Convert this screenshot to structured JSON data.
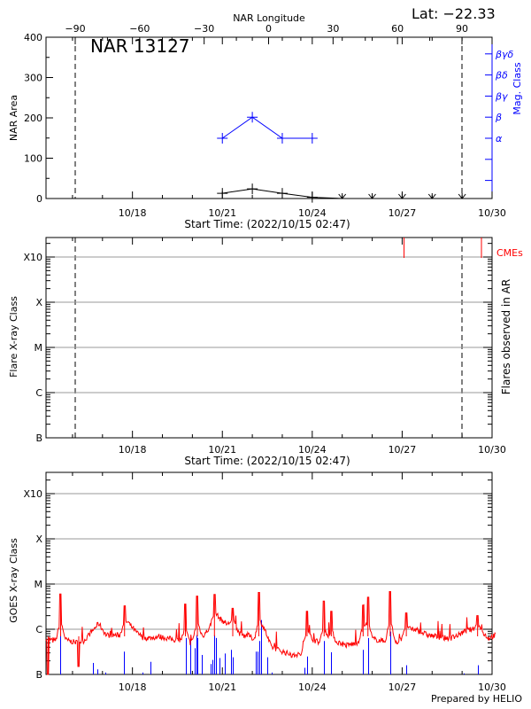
{
  "header": {
    "lat_label": "Lat: −22.33",
    "top_axis_title": "NAR Longitude",
    "region_title": "NAR 13127",
    "footer": "Prepared by HELIO"
  },
  "colors": {
    "axis": "#000000",
    "mag_class": "#0000ff",
    "goes": "#ff0000",
    "flares": "#0000ff",
    "cme": "#ff0000",
    "grid": "#999999"
  },
  "chart_data": [
    {
      "type": "line",
      "panel": "nar-area",
      "ylabel": "NAR Area",
      "y2label": "Mag. Class",
      "xlabel": "Start Time: (2022/10/15 02:47)",
      "start_time": "2022/10/15 02:47",
      "ylim": [
        0,
        400
      ],
      "yticks": [
        "0",
        "100",
        "200",
        "300",
        "400"
      ],
      "xticks": [
        "10/18",
        "10/21",
        "10/24",
        "10/27",
        "10/30"
      ],
      "top_xticks": [
        "-90",
        "-60",
        "-30",
        "0",
        "30",
        "60",
        "90"
      ],
      "top_xlim": [
        -90,
        90
      ],
      "limb_longitudes": [
        -90,
        90
      ],
      "mag_class_ticks": [
        "α",
        "β",
        "βγ",
        "βδ",
        "βγδ"
      ],
      "area_series": [
        {
          "t": "10/21 00:00",
          "area": 13
        },
        {
          "t": "10/22 00:00",
          "area": 24
        },
        {
          "t": "10/23 00:00",
          "area": 13
        },
        {
          "t": "10/24 00:00",
          "area": 3
        },
        {
          "t": "10/25 00:00",
          "area": 0,
          "behind_limb": true
        },
        {
          "t": "10/26 00:00",
          "area": 0,
          "behind_limb": true
        },
        {
          "t": "10/27 00:00",
          "area": 0,
          "behind_limb": true
        },
        {
          "t": "10/28 00:00",
          "area": 0,
          "behind_limb": true
        },
        {
          "t": "10/29 00:00",
          "area": 0,
          "behind_limb": true
        }
      ],
      "mag_class_series": [
        {
          "t": "10/21 00:00",
          "class": "α"
        },
        {
          "t": "10/22 00:00",
          "class": "β"
        },
        {
          "t": "10/23 00:00",
          "class": "α"
        },
        {
          "t": "10/24 00:00",
          "class": "α"
        }
      ]
    },
    {
      "type": "bar",
      "panel": "ar-flares",
      "ylabel": "Flare X-ray Class",
      "y2label": "Flares observed in AR",
      "xlabel": "Start Time: (2022/10/15 02:47)",
      "yticks": [
        "B",
        "C",
        "M",
        "X",
        "X10"
      ],
      "xticks": [
        "10/18",
        "10/21",
        "10/24",
        "10/27",
        "10/30"
      ],
      "flares": [],
      "cme_label": "CMEs",
      "cmes": [
        "10/27 01:30",
        "10/29 15:30"
      ]
    },
    {
      "type": "line",
      "panel": "goes",
      "ylabel": "GOES X-ray Class",
      "yticks": [
        "B",
        "C",
        "M",
        "X",
        "X10"
      ],
      "xticks": [
        "10/18",
        "10/21",
        "10/24",
        "10/27",
        "10/30"
      ],
      "goes_flux": [
        [
          "10/15 03:00",
          6.4e-07
        ],
        [
          "10/15 09:00",
          5.5e-07
        ],
        [
          "10/15 15:00",
          6.4e-07
        ],
        [
          "10/15 21:00",
          5.5e-07
        ],
        [
          "10/16 03:00",
          5.1e-07
        ],
        [
          "10/16 09:00",
          5.5e-07
        ],
        [
          "10/16 15:00",
          8.6e-07
        ],
        [
          "10/16 21:00",
          1.35e-06
        ],
        [
          "10/17 03:00",
          7.4e-07
        ],
        [
          "10/17 09:00",
          7.4e-07
        ],
        [
          "10/17 15:00",
          7.4e-07
        ],
        [
          "10/17 21:00",
          1.35e-06
        ],
        [
          "10/18 03:00",
          8.6e-07
        ],
        [
          "10/18 09:00",
          6.4e-07
        ],
        [
          "10/18 15:00",
          6.4e-07
        ],
        [
          "10/18 21:00",
          6.9e-07
        ],
        [
          "10/19 03:00",
          6.4e-07
        ],
        [
          "10/19 09:00",
          5.9e-07
        ],
        [
          "10/19 15:00",
          5.5e-07
        ],
        [
          "10/19 21:00",
          4.7e-07
        ],
        [
          "10/20 03:00",
          6.4e-07
        ],
        [
          "10/20 09:00",
          7.4e-07
        ],
        [
          "10/20 15:00",
          1.16e-06
        ],
        [
          "10/20 21:00",
          1.8e-06
        ],
        [
          "10/21 03:00",
          1.35e-06
        ],
        [
          "10/21 09:00",
          1.16e-06
        ],
        [
          "10/21 15:00",
          7.4e-07
        ],
        [
          "10/21 21:00",
          7.4e-07
        ],
        [
          "10/22 03:00",
          5.5e-07
        ],
        [
          "10/22 09:00",
          1.16e-06
        ],
        [
          "10/22 15:00",
          4.1e-07
        ],
        [
          "10/22 21:00",
          3.5e-07
        ],
        [
          "10/23 03:00",
          3e-07
        ],
        [
          "10/23 09:00",
          2.6e-07
        ],
        [
          "10/23 15:00",
          2.8e-07
        ],
        [
          "10/23 21:00",
          6.4e-07
        ],
        [
          "10/24 03:00",
          5.5e-07
        ],
        [
          "10/24 09:00",
          4.7e-07
        ],
        [
          "10/24 15:00",
          5.5e-07
        ],
        [
          "10/24 21:00",
          5.1e-07
        ],
        [
          "10/25 03:00",
          4.4e-07
        ],
        [
          "10/25 09:00",
          4.7e-07
        ],
        [
          "10/25 15:00",
          5.5e-07
        ],
        [
          "10/25 21:00",
          6.4e-07
        ],
        [
          "10/26 03:00",
          5.9e-07
        ],
        [
          "10/26 09:00",
          5.5e-07
        ],
        [
          "10/26 15:00",
          6.4e-07
        ],
        [
          "10/26 21:00",
          5.1e-07
        ],
        [
          "10/27 03:00",
          8.6e-07
        ],
        [
          "10/27 09:00",
          1e-06
        ],
        [
          "10/27 15:00",
          8.6e-07
        ],
        [
          "10/27 21:00",
          7.4e-07
        ],
        [
          "10/28 03:00",
          6.9e-07
        ],
        [
          "10/28 09:00",
          6.4e-07
        ],
        [
          "10/28 15:00",
          6.4e-07
        ],
        [
          "10/28 21:00",
          7.4e-07
        ],
        [
          "10/29 03:00",
          9.3e-07
        ],
        [
          "10/29 09:00",
          1e-06
        ],
        [
          "10/29 15:00",
          9.3e-07
        ],
        [
          "10/29 21:00",
          6.4e-07
        ],
        [
          "10/30 03:00",
          7.4e-07
        ]
      ],
      "goes_peaks": [
        [
          "10/15 04:30",
          1e-07
        ],
        [
          "10/15 14:30",
          6e-06
        ],
        [
          "10/16 05:00",
          1.5e-07
        ],
        [
          "10/17 17:40",
          3.3e-06
        ],
        [
          "10/19 18:25",
          3.6e-06
        ],
        [
          "10/20 04:00",
          5.4e-06
        ],
        [
          "10/20 17:40",
          5.9e-06
        ],
        [
          "10/21 08:20",
          2.9e-06
        ],
        [
          "10/22 05:10",
          6.5e-06
        ],
        [
          "10/23 19:50",
          2.5e-06
        ],
        [
          "10/24 09:30",
          4.2e-06
        ],
        [
          "10/24 15:15",
          2.5e-06
        ],
        [
          "10/25 16:45",
          3.4e-06
        ],
        [
          "10/25 20:35",
          5.1e-06
        ],
        [
          "10/26 14:25",
          6.8e-06
        ],
        [
          "10/27 03:20",
          2.3e-06
        ],
        [
          "10/29 12:25",
          2e-06
        ]
      ],
      "flare_events": [
        [
          "10/15 14:20",
          7.6e-07
        ],
        [
          "10/16 16:22",
          1.8e-07
        ],
        [
          "10/16 19:40",
          1.3e-07
        ],
        [
          "10/17 02:30",
          1.1e-07
        ],
        [
          "10/17 17:20",
          3.2e-07
        ],
        [
          "10/18 08:10",
          1.1e-07
        ],
        [
          "10/18 14:40",
          1.9e-07
        ],
        [
          "10/19 18:25",
          6.4e-07
        ],
        [
          "10/19 22:30",
          6.4e-07
        ],
        [
          "10/20 02:05",
          3.8e-07
        ],
        [
          "10/20 03:30",
          7.4e-07
        ],
        [
          "10/20 04:20",
          6.4e-07
        ],
        [
          "10/20 07:20",
          2.7e-07
        ],
        [
          "10/20 14:25",
          1.7e-07
        ],
        [
          "10/20 15:50",
          2.1e-07
        ],
        [
          "10/20 17:45",
          7.4e-07
        ],
        [
          "10/20 18:35",
          6.4e-07
        ],
        [
          "10/20 21:50",
          2.3e-07
        ],
        [
          "10/21 02:00",
          2.9e-07
        ],
        [
          "10/21 06:55",
          3.5e-07
        ],
        [
          "10/21 08:20",
          2.4e-07
        ],
        [
          "10/22 02:55",
          3.2e-07
        ],
        [
          "10/22 04:00",
          3.2e-07
        ],
        [
          "10/22 05:25",
          5.5e-07
        ],
        [
          "10/22 07:05",
          1.6e-06
        ],
        [
          "10/22 11:45",
          2.4e-07
        ],
        [
          "10/22 15:50",
          1.1e-07
        ],
        [
          "10/23 17:55",
          1.4e-07
        ],
        [
          "10/23 19:50",
          2.5e-07
        ],
        [
          "10/24 09:30",
          5.5e-07
        ],
        [
          "10/24 15:15",
          3.1e-07
        ],
        [
          "10/25 16:45",
          3.5e-07
        ],
        [
          "10/25 20:35",
          6.4e-07
        ],
        [
          "10/26 14:25",
          8.9e-07
        ],
        [
          "10/27 03:20",
          1.6e-07
        ],
        [
          "10/29 01:25",
          1.05e-07
        ],
        [
          "10/29 12:25",
          1.6e-07
        ]
      ]
    }
  ]
}
